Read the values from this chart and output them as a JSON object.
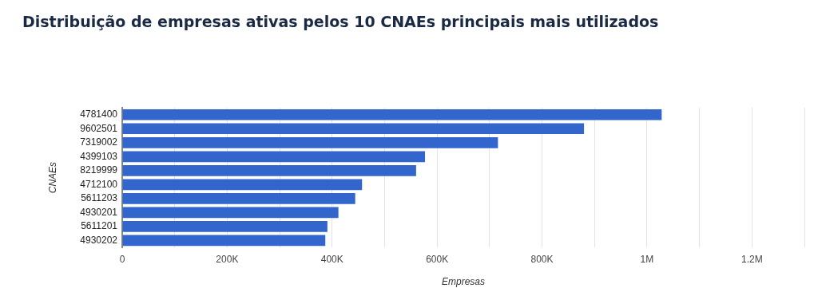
{
  "chart_data": {
    "type": "bar",
    "orientation": "horizontal",
    "title": "Distribuição de empresas ativas pelos 10 CNAEs principais mais utilizados",
    "xlabel": "Empresas",
    "ylabel": "CNAEs",
    "categories": [
      "4781400",
      "9602501",
      "7319002",
      "4399103",
      "8219999",
      "4712100",
      "5611203",
      "4930201",
      "5611201",
      "4930202"
    ],
    "values": [
      1028000,
      880000,
      716000,
      577000,
      560000,
      457000,
      444000,
      412000,
      391000,
      387000
    ],
    "color": "#3366cc",
    "xlim": [
      0,
      1300000
    ],
    "xticks": [
      {
        "value": 0,
        "label": "0"
      },
      {
        "value": 100000,
        "label": null
      },
      {
        "value": 200000,
        "label": "200K"
      },
      {
        "value": 300000,
        "label": null
      },
      {
        "value": 400000,
        "label": "400K"
      },
      {
        "value": 500000,
        "label": null
      },
      {
        "value": 600000,
        "label": "600K"
      },
      {
        "value": 700000,
        "label": null
      },
      {
        "value": 800000,
        "label": "800K"
      },
      {
        "value": 900000,
        "label": null
      },
      {
        "value": 1000000,
        "label": "1M"
      },
      {
        "value": 1100000,
        "label": null
      },
      {
        "value": 1200000,
        "label": "1.2M"
      },
      {
        "value": 1300000,
        "label": null
      }
    ],
    "grid": "x",
    "legend": false
  }
}
